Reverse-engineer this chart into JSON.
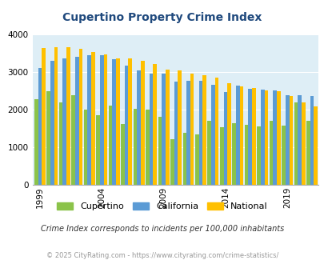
{
  "title": "Cupertino Property Crime Index",
  "years": [
    1999,
    2000,
    2001,
    2002,
    2003,
    2004,
    2005,
    2006,
    2007,
    2008,
    2009,
    2010,
    2011,
    2012,
    2013,
    2014,
    2015,
    2016,
    2017,
    2018,
    2019,
    2020,
    2021
  ],
  "cupertino": [
    2280,
    2480,
    2190,
    2390,
    2000,
    1840,
    2110,
    1620,
    2020,
    2000,
    1800,
    1220,
    1380,
    1350,
    1700,
    1540,
    1640,
    1600,
    1550,
    1700,
    1570,
    2190,
    1700
  ],
  "california": [
    3100,
    3300,
    3350,
    3400,
    3450,
    3450,
    3330,
    3160,
    3050,
    2960,
    2950,
    2740,
    2760,
    2770,
    2660,
    2470,
    2640,
    2560,
    2540,
    2500,
    2380,
    2390,
    2360
  ],
  "national": [
    3640,
    3660,
    3660,
    3610,
    3530,
    3460,
    3350,
    3360,
    3300,
    3220,
    3060,
    3040,
    2960,
    2910,
    2850,
    2700,
    2620,
    2570,
    2510,
    2480,
    2360,
    2180,
    2090
  ],
  "cupertino_color": "#8bc34a",
  "california_color": "#5b9bd5",
  "national_color": "#ffc000",
  "bg_color": "#deeef6",
  "title_color": "#1f497d",
  "subtitle": "Crime Index corresponds to incidents per 100,000 inhabitants",
  "footer": "© 2025 CityRating.com - https://www.cityrating.com/crime-statistics/",
  "ylim": [
    0,
    4000
  ],
  "yticks": [
    0,
    1000,
    2000,
    3000,
    4000
  ],
  "tick_years": [
    1999,
    2004,
    2009,
    2014,
    2019
  ]
}
